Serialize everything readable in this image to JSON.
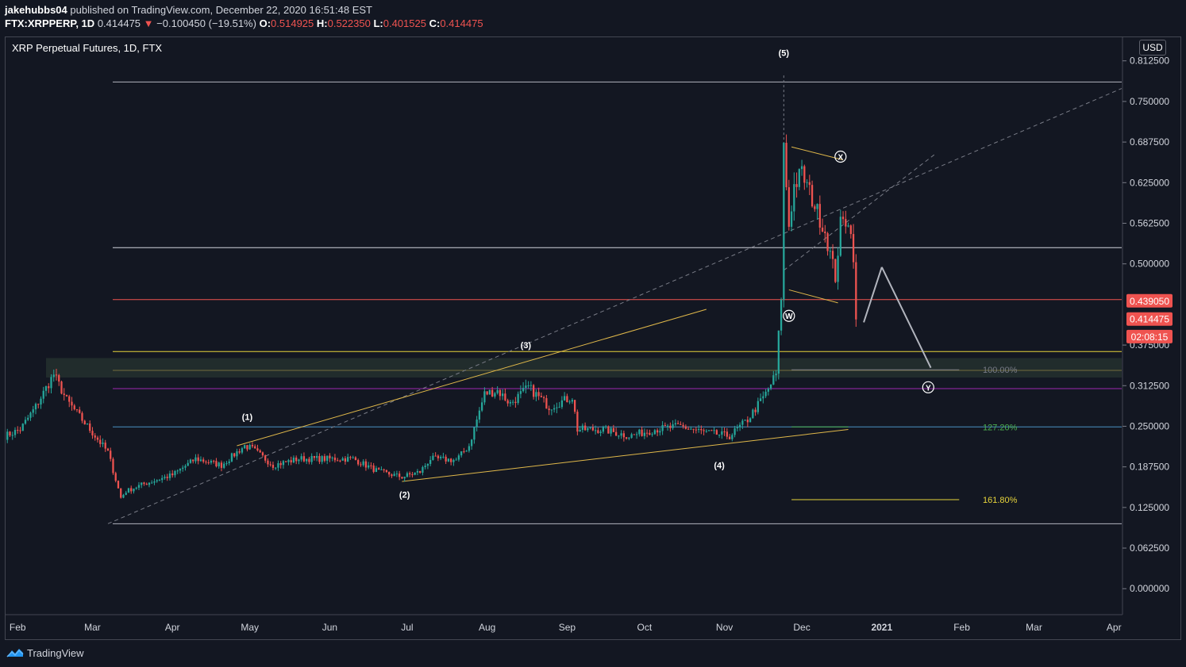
{
  "header": {
    "author": "jakehubbs04",
    "published": "published on TradingView.com, December 22, 2020 16:51:48 EST",
    "symbol": "FTX:XRPPERP, 1D",
    "last": "0.414475",
    "change_arrow": "▼",
    "change": "−0.100450 (−19.51%)",
    "o_label": "O:",
    "o": "0.514925",
    "h_label": "H:",
    "h": "0.522350",
    "l_label": "L:",
    "l": "0.401525",
    "c_label": "C:",
    "c": "0.414475"
  },
  "chart_title": "XRP Perpetual Futures, 1D, FTX",
  "currency": "USD",
  "footer": {
    "brand": "TradingView",
    "icon": "tradingview-logo-icon"
  },
  "colors": {
    "background": "#131722",
    "up": "#26a69a",
    "down": "#ef5350",
    "resistance": "#ef5350"
  },
  "chart_data": {
    "type": "candlestick",
    "title": "XRP Perpetual Futures, 1D, FTX",
    "y_range": [
      -0.04,
      0.85
    ],
    "x_range": [
      "2020-01-27",
      "2021-04-04"
    ],
    "y_ticks": [
      "0.812500",
      "0.750000",
      "0.687500",
      "0.625000",
      "0.562500",
      "0.500000",
      "0.375000",
      "0.312500",
      "0.250000",
      "0.187500",
      "0.125000",
      "0.062500",
      "0.000000"
    ],
    "x_ticks": [
      {
        "label": "Feb",
        "date": "2020-02-01"
      },
      {
        "label": "Mar",
        "date": "2020-03-01"
      },
      {
        "label": "Apr",
        "date": "2020-04-01"
      },
      {
        "label": "May",
        "date": "2020-05-01"
      },
      {
        "label": "Jun",
        "date": "2020-06-01"
      },
      {
        "label": "Jul",
        "date": "2020-07-01"
      },
      {
        "label": "Aug",
        "date": "2020-08-01"
      },
      {
        "label": "Sep",
        "date": "2020-09-01"
      },
      {
        "label": "Oct",
        "date": "2020-10-01"
      },
      {
        "label": "Nov",
        "date": "2020-11-01"
      },
      {
        "label": "Dec",
        "date": "2020-12-01"
      },
      {
        "label": "2021",
        "date": "2021-01-01"
      },
      {
        "label": "Feb",
        "date": "2021-02-01"
      },
      {
        "label": "Mar",
        "date": "2021-03-01"
      },
      {
        "label": "Apr",
        "date": "2021-04-01"
      }
    ],
    "price_keypoints": [
      [
        "2020-01-27",
        0.235
      ],
      [
        "2020-02-02",
        0.245
      ],
      [
        "2020-02-08",
        0.28
      ],
      [
        "2020-02-15",
        0.33
      ],
      [
        "2020-02-20",
        0.29
      ],
      [
        "2020-02-26",
        0.26
      ],
      [
        "2020-03-01",
        0.24
      ],
      [
        "2020-03-07",
        0.21
      ],
      [
        "2020-03-12",
        0.14
      ],
      [
        "2020-03-14",
        0.15
      ],
      [
        "2020-03-20",
        0.16
      ],
      [
        "2020-04-01",
        0.175
      ],
      [
        "2020-04-10",
        0.2
      ],
      [
        "2020-04-20",
        0.19
      ],
      [
        "2020-04-29",
        0.22
      ],
      [
        "2020-05-02",
        0.215
      ],
      [
        "2020-05-10",
        0.19
      ],
      [
        "2020-05-20",
        0.2
      ],
      [
        "2020-06-01",
        0.2
      ],
      [
        "2020-06-10",
        0.2
      ],
      [
        "2020-06-20",
        0.18
      ],
      [
        "2020-06-29",
        0.172
      ],
      [
        "2020-07-06",
        0.18
      ],
      [
        "2020-07-10",
        0.2
      ],
      [
        "2020-07-20",
        0.198
      ],
      [
        "2020-07-25",
        0.22
      ],
      [
        "2020-07-31",
        0.3
      ],
      [
        "2020-08-05",
        0.305
      ],
      [
        "2020-08-10",
        0.285
      ],
      [
        "2020-08-17",
        0.31
      ],
      [
        "2020-08-25",
        0.28
      ],
      [
        "2020-09-03",
        0.295
      ],
      [
        "2020-09-05",
        0.245
      ],
      [
        "2020-09-15",
        0.245
      ],
      [
        "2020-09-25",
        0.235
      ],
      [
        "2020-10-05",
        0.245
      ],
      [
        "2020-10-15",
        0.25
      ],
      [
        "2020-10-25",
        0.24
      ],
      [
        "2020-11-03",
        0.235
      ],
      [
        "2020-11-10",
        0.26
      ],
      [
        "2020-11-17",
        0.3
      ],
      [
        "2020-11-21",
        0.33
      ],
      [
        "2020-11-23",
        0.45
      ],
      [
        "2020-11-24",
        0.68
      ],
      [
        "2020-11-26",
        0.56
      ],
      [
        "2020-11-28",
        0.62
      ],
      [
        "2020-12-01",
        0.64
      ],
      [
        "2020-12-05",
        0.6
      ],
      [
        "2020-12-10",
        0.55
      ],
      [
        "2020-12-14",
        0.48
      ],
      [
        "2020-12-16",
        0.56
      ],
      [
        "2020-12-19",
        0.57
      ],
      [
        "2020-12-21",
        0.515
      ],
      [
        "2020-12-22",
        0.414475
      ]
    ],
    "horizontal_levels": [
      {
        "price": 0.78,
        "color": "#b2b5be"
      },
      {
        "price": 0.525,
        "color": "#d1d4dc"
      },
      {
        "price": 0.445,
        "color": "#ef5350"
      },
      {
        "price": 0.365,
        "color": "#e6d33b"
      },
      {
        "price": 0.336,
        "color": "#e0b84a"
      },
      {
        "price": 0.308,
        "color": "#9c27b0"
      },
      {
        "price": 0.249,
        "color": "#4a90c2"
      },
      {
        "price": 0.1,
        "color": "#b2b5be"
      }
    ],
    "price_labels": [
      {
        "text": "0.439050",
        "price": 0.4425
      },
      {
        "text": "0.414475",
        "price": 0.414475
      },
      {
        "text": "02:08:15",
        "price": 0.3875
      }
    ],
    "fib_labels": [
      {
        "text": "100.00%",
        "price": 0.337,
        "color": "#787b86"
      },
      {
        "text": "127.20%",
        "price": 0.249,
        "color": "#4caf50"
      },
      {
        "text": "161.80%",
        "price": 0.137,
        "color": "#e6d33b"
      }
    ],
    "wave_labels": [
      {
        "text": "(1)",
        "date": "2020-04-30",
        "price": 0.26
      },
      {
        "text": "(2)",
        "date": "2020-06-30",
        "price": 0.14
      },
      {
        "text": "(3)",
        "date": "2020-08-16",
        "price": 0.37
      },
      {
        "text": "(4)",
        "date": "2020-10-30",
        "price": 0.185
      },
      {
        "text": "(5)",
        "date": "2020-11-24",
        "price": 0.82
      }
    ],
    "circle_labels": [
      {
        "text": "W",
        "date": "2020-11-26",
        "price": 0.42
      },
      {
        "text": "X",
        "date": "2020-12-16",
        "price": 0.665
      },
      {
        "text": "Y",
        "date": "2021-01-19",
        "price": 0.31
      }
    ]
  }
}
